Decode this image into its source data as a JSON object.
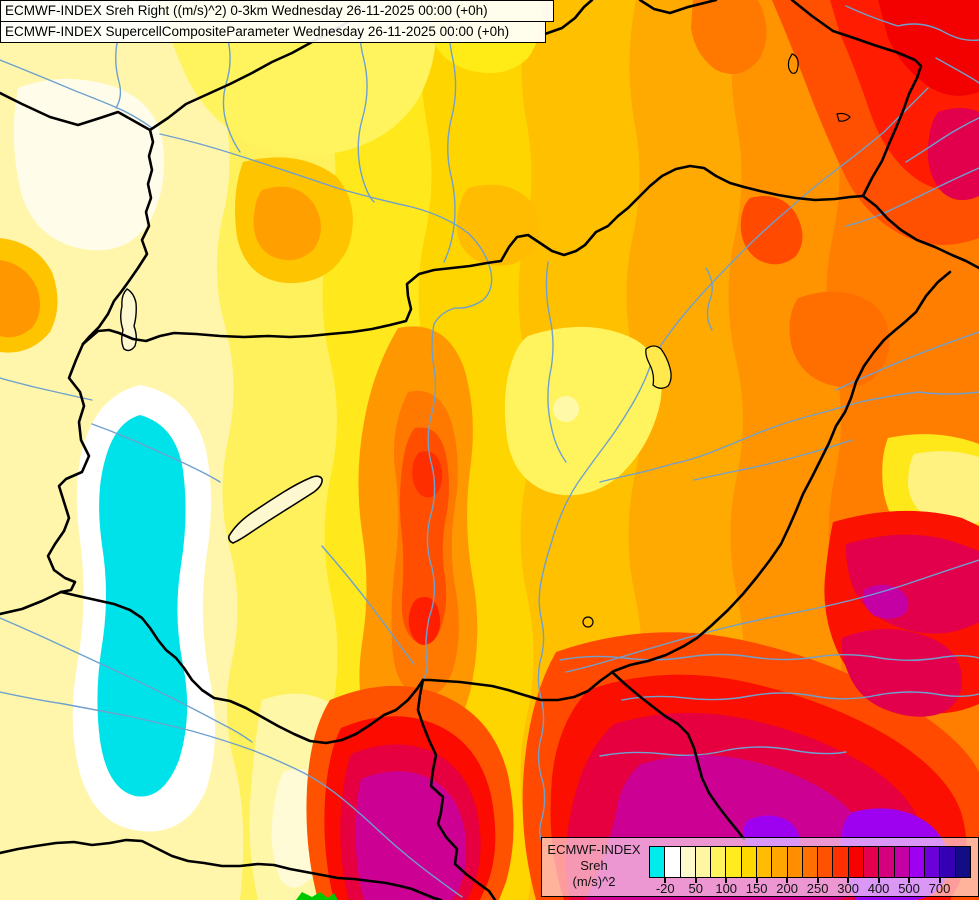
{
  "titles": {
    "line1": "ECMWF-INDEX Sreh Right ((m/s)^2) 0-3km Wednesday 26-11-2025 00:00 (+0h)",
    "line2": "ECMWF-INDEX SupercellCompositeParameter Wednesday 26-11-2025 00:00 (+0h)"
  },
  "legend": {
    "product": "ECMWF-INDEX",
    "parameter": "Sreh",
    "units": "(m/s)^2",
    "tick_labels": [
      "-20",
      "50",
      "100",
      "150",
      "200",
      "250",
      "300",
      "400",
      "500",
      "700"
    ],
    "swatch_colors": [
      "#00ECEC",
      "#FFFFFF",
      "#FFFACD",
      "#FFF6A1",
      "#FFF35E",
      "#FFEB1E",
      "#FFD800",
      "#FFBC00",
      "#FFA600",
      "#FF8F00",
      "#FF7000",
      "#FF5200",
      "#FF3000",
      "#F80000",
      "#E4004E",
      "#D4007C",
      "#C300A6",
      "#9E00F0",
      "#6B00D8",
      "#3500B4",
      "#140B87"
    ]
  },
  "map_colors": {
    "border_lines": "#000000",
    "rivers": "#6FA0CE",
    "negative_helicity_area": "#00E2EA",
    "ground_marker": "#00C800"
  }
}
